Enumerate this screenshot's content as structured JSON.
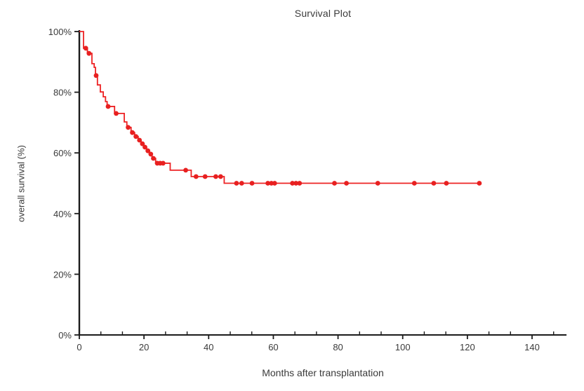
{
  "chart_data": {
    "type": "line",
    "subtype": "kaplan-meier-step-curve",
    "title": "Survival Plot",
    "xlabel": "Months after transplantation",
    "ylabel": "overall survival  (%)",
    "xlim": [
      0,
      150
    ],
    "ylim": [
      0,
      100
    ],
    "xticks": [
      0,
      20,
      40,
      60,
      80,
      100,
      120,
      140
    ],
    "x_minor_interval": 6.6667,
    "yticks": [
      0,
      20,
      40,
      60,
      80,
      100
    ],
    "ytick_suffix": "%",
    "grid": "off",
    "legend": "none",
    "line_color": "#ed2224",
    "marker_color": "#e82020",
    "axis_color": "#1b1b1b",
    "text_color": "#3a3a3a",
    "series": [
      {
        "name": "overall survival",
        "start": [
          0,
          100
        ],
        "end_time": 124,
        "steps": [
          [
            1.3,
            94.5
          ],
          [
            2.5,
            92.8
          ],
          [
            3.9,
            89.4
          ],
          [
            4.6,
            88.2
          ],
          [
            5.0,
            85.5
          ],
          [
            5.6,
            82.4
          ],
          [
            6.5,
            80.1
          ],
          [
            7.4,
            78.5
          ],
          [
            8.1,
            76.9
          ],
          [
            8.6,
            75.3
          ],
          [
            10.9,
            73.0
          ],
          [
            13.9,
            70.2
          ],
          [
            14.7,
            68.4
          ],
          [
            16.0,
            66.7
          ],
          [
            17.1,
            65.4
          ],
          [
            18.2,
            64.2
          ],
          [
            19.1,
            63.0
          ],
          [
            20.0,
            61.9
          ],
          [
            20.8,
            60.7
          ],
          [
            21.7,
            59.6
          ],
          [
            22.5,
            58.2
          ],
          [
            23.6,
            56.6
          ],
          [
            28.1,
            54.3
          ],
          [
            34.6,
            52.2
          ],
          [
            44.8,
            50.0
          ]
        ],
        "censor_marks": [
          [
            2.0,
            94.5
          ],
          [
            3.0,
            92.8
          ],
          [
            5.2,
            85.5
          ],
          [
            8.9,
            75.3
          ],
          [
            11.4,
            73.0
          ],
          [
            15.1,
            68.4
          ],
          [
            16.4,
            66.7
          ],
          [
            17.5,
            65.4
          ],
          [
            18.6,
            64.2
          ],
          [
            19.5,
            63.0
          ],
          [
            20.3,
            61.9
          ],
          [
            21.2,
            60.7
          ],
          [
            22.1,
            59.6
          ],
          [
            22.9,
            58.2
          ],
          [
            24.1,
            56.6
          ],
          [
            25.0,
            56.6
          ],
          [
            25.9,
            56.6
          ],
          [
            32.9,
            54.3
          ],
          [
            36.1,
            52.2
          ],
          [
            38.9,
            52.2
          ],
          [
            42.2,
            52.2
          ],
          [
            43.7,
            52.2
          ],
          [
            48.6,
            50.0
          ],
          [
            50.2,
            50.0
          ],
          [
            53.4,
            50.0
          ],
          [
            58.3,
            50.0
          ],
          [
            59.4,
            50.0
          ],
          [
            60.4,
            50.0
          ],
          [
            65.9,
            50.0
          ],
          [
            67.0,
            50.0
          ],
          [
            68.1,
            50.0
          ],
          [
            78.9,
            50.0
          ],
          [
            82.6,
            50.0
          ],
          [
            92.3,
            50.0
          ],
          [
            103.6,
            50.0
          ],
          [
            109.6,
            50.0
          ],
          [
            113.5,
            50.0
          ],
          [
            123.7,
            50.0
          ]
        ]
      }
    ]
  }
}
